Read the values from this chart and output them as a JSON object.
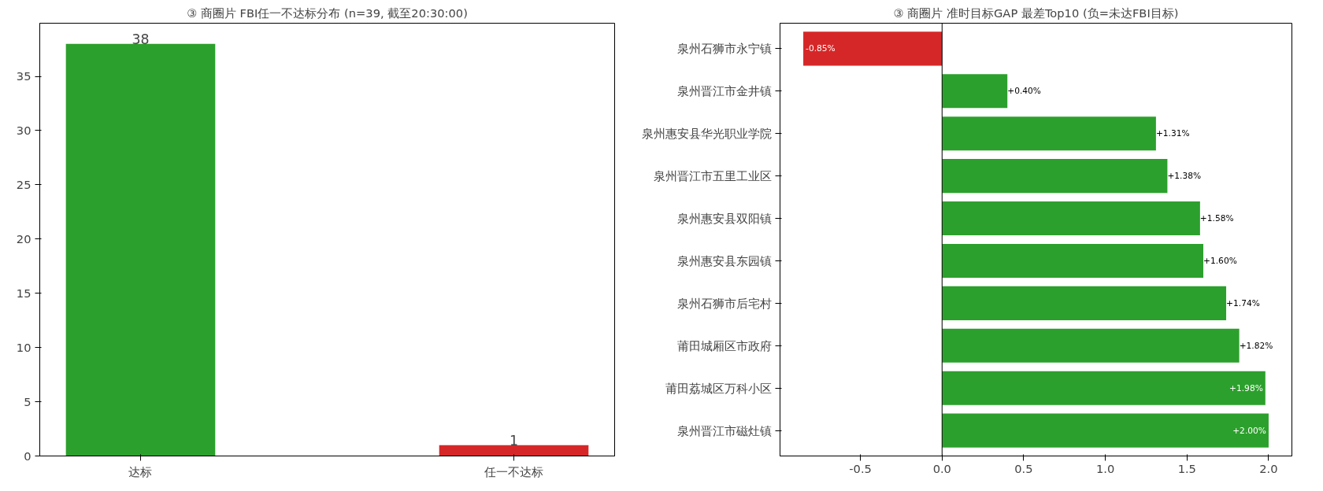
{
  "chart_data": [
    {
      "type": "bar",
      "title": "③ 商圈片 FBI任一不达标分布 (n=39, 截至20:30:00)",
      "categories": [
        "达标",
        "任一不达标"
      ],
      "values": [
        38,
        1
      ],
      "colors": [
        "#2ca02c",
        "#d62728"
      ],
      "ylim": [
        0,
        39.9
      ],
      "yticks": [
        0,
        5,
        10,
        15,
        20,
        25,
        30,
        35
      ],
      "data_labels": true,
      "grid": false
    },
    {
      "type": "bar",
      "orientation": "horizontal",
      "title": "③ 商圈片 准时目标GAP 最差Top10 (负=未达FBI目标)",
      "categories": [
        "泉州石狮市永宁镇",
        "泉州晋江市金井镇",
        "泉州惠安县华光职业学院",
        "泉州晋江市五里工业区",
        "泉州惠安县双阳镇",
        "泉州惠安县东园镇",
        "泉州石狮市后宅村",
        "莆田城厢区市政府",
        "莆田荔城区万科小区",
        "泉州晋江市磁灶镇"
      ],
      "values": [
        -0.85,
        0.4,
        1.31,
        1.38,
        1.58,
        1.6,
        1.74,
        1.82,
        1.98,
        2.0
      ],
      "colors": [
        "#d62728",
        "#2ca02c",
        "#2ca02c",
        "#2ca02c",
        "#2ca02c",
        "#2ca02c",
        "#2ca02c",
        "#2ca02c",
        "#2ca02c",
        "#2ca02c"
      ],
      "value_labels": [
        "-0.85%",
        "+0.40%",
        "+1.31%",
        "+1.38%",
        "+1.58%",
        "+1.60%",
        "+1.74%",
        "+1.82%",
        "+1.98%",
        "+2.00%"
      ],
      "xlim": [
        -0.9925,
        2.1425
      ],
      "xticks": [
        {
          "value": -0.5,
          "label": "-0.5"
        },
        {
          "value": 0,
          "label": "0.0"
        },
        {
          "value": 0.5,
          "label": "0.5"
        },
        {
          "value": 1,
          "label": "1.0"
        },
        {
          "value": 1.5,
          "label": "1.5"
        },
        {
          "value": 2,
          "label": "2.0"
        }
      ],
      "ref_lines": [
        {
          "axis": "x",
          "value": 0,
          "color": "#000000"
        }
      ],
      "grid": false
    }
  ]
}
